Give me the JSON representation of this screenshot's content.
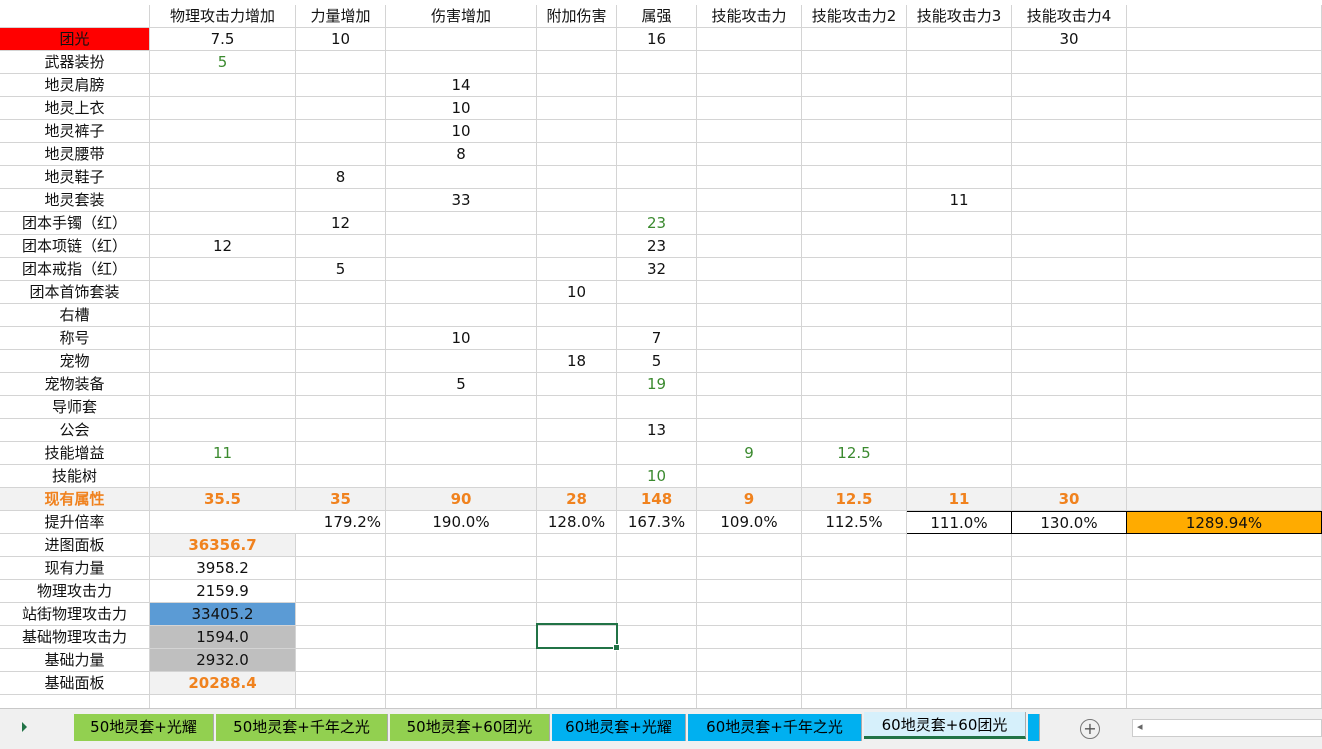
{
  "colors": {
    "green": "#3b8a2f",
    "orange": "#f0821e",
    "red": "#ff0000",
    "gray_bg": "#f2f2f2",
    "dark_gray_bg": "#bfbfbf",
    "blue_bg": "#5b9bd5",
    "orange_bg": "#ffab00",
    "tab_green": "#92d050",
    "tab_blue": "#00b0f0",
    "tab_active": "#d6f0fb"
  },
  "sheet": {
    "rows": [
      [
        {
          "v": ""
        },
        {
          "v": "物理攻击力增加"
        },
        {
          "v": "力量增加"
        },
        {
          "v": "伤害增加"
        },
        {
          "v": "附加伤害"
        },
        {
          "v": "属强"
        },
        {
          "v": "技能攻击力"
        },
        {
          "v": "技能攻击力2"
        },
        {
          "v": "技能攻击力3"
        },
        {
          "v": "技能攻击力4"
        },
        {
          "v": ""
        }
      ],
      [
        {
          "v": "团光",
          "bg": "red"
        },
        {
          "v": "7.5"
        },
        {
          "v": "10"
        },
        {
          "v": ""
        },
        {
          "v": ""
        },
        {
          "v": "16"
        },
        {
          "v": ""
        },
        {
          "v": ""
        },
        {
          "v": ""
        },
        {
          "v": "30"
        },
        {
          "v": ""
        }
      ],
      [
        {
          "v": "武器装扮"
        },
        {
          "v": "5",
          "c": "green"
        },
        {
          "v": ""
        },
        {
          "v": ""
        },
        {
          "v": ""
        },
        {
          "v": ""
        },
        {
          "v": ""
        },
        {
          "v": ""
        },
        {
          "v": ""
        },
        {
          "v": ""
        },
        {
          "v": ""
        }
      ],
      [
        {
          "v": "地灵肩膀"
        },
        {
          "v": ""
        },
        {
          "v": ""
        },
        {
          "v": "14"
        },
        {
          "v": ""
        },
        {
          "v": ""
        },
        {
          "v": ""
        },
        {
          "v": ""
        },
        {
          "v": ""
        },
        {
          "v": ""
        },
        {
          "v": ""
        }
      ],
      [
        {
          "v": "地灵上衣"
        },
        {
          "v": ""
        },
        {
          "v": ""
        },
        {
          "v": "10"
        },
        {
          "v": ""
        },
        {
          "v": ""
        },
        {
          "v": ""
        },
        {
          "v": ""
        },
        {
          "v": ""
        },
        {
          "v": ""
        },
        {
          "v": ""
        }
      ],
      [
        {
          "v": "地灵裤子"
        },
        {
          "v": ""
        },
        {
          "v": ""
        },
        {
          "v": "10"
        },
        {
          "v": ""
        },
        {
          "v": ""
        },
        {
          "v": ""
        },
        {
          "v": ""
        },
        {
          "v": ""
        },
        {
          "v": ""
        },
        {
          "v": ""
        }
      ],
      [
        {
          "v": "地灵腰带"
        },
        {
          "v": ""
        },
        {
          "v": ""
        },
        {
          "v": "8"
        },
        {
          "v": ""
        },
        {
          "v": ""
        },
        {
          "v": ""
        },
        {
          "v": ""
        },
        {
          "v": ""
        },
        {
          "v": ""
        },
        {
          "v": ""
        }
      ],
      [
        {
          "v": "地灵鞋子"
        },
        {
          "v": ""
        },
        {
          "v": "8"
        },
        {
          "v": ""
        },
        {
          "v": ""
        },
        {
          "v": ""
        },
        {
          "v": ""
        },
        {
          "v": ""
        },
        {
          "v": ""
        },
        {
          "v": ""
        },
        {
          "v": ""
        }
      ],
      [
        {
          "v": "地灵套装"
        },
        {
          "v": ""
        },
        {
          "v": ""
        },
        {
          "v": "33"
        },
        {
          "v": ""
        },
        {
          "v": ""
        },
        {
          "v": ""
        },
        {
          "v": ""
        },
        {
          "v": "11"
        },
        {
          "v": ""
        },
        {
          "v": ""
        }
      ],
      [
        {
          "v": "团本手镯（红）"
        },
        {
          "v": ""
        },
        {
          "v": "12"
        },
        {
          "v": ""
        },
        {
          "v": ""
        },
        {
          "v": "23",
          "c": "green"
        },
        {
          "v": ""
        },
        {
          "v": ""
        },
        {
          "v": ""
        },
        {
          "v": ""
        },
        {
          "v": ""
        }
      ],
      [
        {
          "v": "团本项链（红）"
        },
        {
          "v": "12"
        },
        {
          "v": ""
        },
        {
          "v": ""
        },
        {
          "v": ""
        },
        {
          "v": "23"
        },
        {
          "v": ""
        },
        {
          "v": ""
        },
        {
          "v": ""
        },
        {
          "v": ""
        },
        {
          "v": ""
        }
      ],
      [
        {
          "v": "团本戒指（红）"
        },
        {
          "v": ""
        },
        {
          "v": "5"
        },
        {
          "v": ""
        },
        {
          "v": ""
        },
        {
          "v": "32"
        },
        {
          "v": ""
        },
        {
          "v": ""
        },
        {
          "v": ""
        },
        {
          "v": ""
        },
        {
          "v": ""
        }
      ],
      [
        {
          "v": "团本首饰套装"
        },
        {
          "v": ""
        },
        {
          "v": ""
        },
        {
          "v": ""
        },
        {
          "v": "10"
        },
        {
          "v": ""
        },
        {
          "v": ""
        },
        {
          "v": ""
        },
        {
          "v": ""
        },
        {
          "v": ""
        },
        {
          "v": ""
        }
      ],
      [
        {
          "v": "右槽"
        },
        {
          "v": ""
        },
        {
          "v": ""
        },
        {
          "v": ""
        },
        {
          "v": ""
        },
        {
          "v": ""
        },
        {
          "v": ""
        },
        {
          "v": ""
        },
        {
          "v": ""
        },
        {
          "v": ""
        },
        {
          "v": ""
        }
      ],
      [
        {
          "v": "称号"
        },
        {
          "v": ""
        },
        {
          "v": ""
        },
        {
          "v": "10"
        },
        {
          "v": ""
        },
        {
          "v": "7"
        },
        {
          "v": ""
        },
        {
          "v": ""
        },
        {
          "v": ""
        },
        {
          "v": ""
        },
        {
          "v": ""
        }
      ],
      [
        {
          "v": "宠物"
        },
        {
          "v": ""
        },
        {
          "v": ""
        },
        {
          "v": ""
        },
        {
          "v": "18"
        },
        {
          "v": "5"
        },
        {
          "v": ""
        },
        {
          "v": ""
        },
        {
          "v": ""
        },
        {
          "v": ""
        },
        {
          "v": ""
        }
      ],
      [
        {
          "v": "宠物装备"
        },
        {
          "v": ""
        },
        {
          "v": ""
        },
        {
          "v": "5"
        },
        {
          "v": ""
        },
        {
          "v": "19",
          "c": "green"
        },
        {
          "v": ""
        },
        {
          "v": ""
        },
        {
          "v": ""
        },
        {
          "v": ""
        },
        {
          "v": ""
        }
      ],
      [
        {
          "v": "导师套"
        },
        {
          "v": ""
        },
        {
          "v": ""
        },
        {
          "v": ""
        },
        {
          "v": ""
        },
        {
          "v": ""
        },
        {
          "v": ""
        },
        {
          "v": ""
        },
        {
          "v": ""
        },
        {
          "v": ""
        },
        {
          "v": ""
        }
      ],
      [
        {
          "v": "公会"
        },
        {
          "v": ""
        },
        {
          "v": ""
        },
        {
          "v": ""
        },
        {
          "v": ""
        },
        {
          "v": "13"
        },
        {
          "v": ""
        },
        {
          "v": ""
        },
        {
          "v": ""
        },
        {
          "v": ""
        },
        {
          "v": ""
        }
      ],
      [
        {
          "v": "技能增益"
        },
        {
          "v": "11",
          "c": "green"
        },
        {
          "v": ""
        },
        {
          "v": ""
        },
        {
          "v": ""
        },
        {
          "v": ""
        },
        {
          "v": "9",
          "c": "green"
        },
        {
          "v": "12.5",
          "c": "green"
        },
        {
          "v": ""
        },
        {
          "v": ""
        },
        {
          "v": ""
        }
      ],
      [
        {
          "v": "技能树"
        },
        {
          "v": ""
        },
        {
          "v": ""
        },
        {
          "v": ""
        },
        {
          "v": ""
        },
        {
          "v": "10",
          "c": "green"
        },
        {
          "v": ""
        },
        {
          "v": ""
        },
        {
          "v": ""
        },
        {
          "v": ""
        },
        {
          "v": ""
        }
      ],
      [
        {
          "v": "现有属性",
          "c": "orange",
          "b": 1,
          "bg": "gray_bg"
        },
        {
          "v": "35.5",
          "c": "orange",
          "b": 1,
          "bg": "gray_bg"
        },
        {
          "v": "35",
          "c": "orange",
          "b": 1,
          "bg": "gray_bg"
        },
        {
          "v": "90",
          "c": "orange",
          "b": 1,
          "bg": "gray_bg"
        },
        {
          "v": "28",
          "c": "orange",
          "b": 1,
          "bg": "gray_bg"
        },
        {
          "v": "148",
          "c": "orange",
          "b": 1,
          "bg": "gray_bg"
        },
        {
          "v": "9",
          "c": "orange",
          "b": 1,
          "bg": "gray_bg"
        },
        {
          "v": "12.5",
          "c": "orange",
          "b": 1,
          "bg": "gray_bg"
        },
        {
          "v": "11",
          "c": "orange",
          "b": 1,
          "bg": "gray_bg"
        },
        {
          "v": "30",
          "c": "orange",
          "b": 1,
          "bg": "gray_bg"
        },
        {
          "v": "",
          "bg": "gray_bg"
        }
      ],
      [
        {
          "v": "提升倍率"
        },
        {
          "v": "179.2%",
          "span": 2
        },
        {
          "v": "190.0%"
        },
        {
          "v": "128.0%"
        },
        {
          "v": "167.3%"
        },
        {
          "v": "109.0%"
        },
        {
          "v": "112.5%"
        },
        {
          "v": "111.0%",
          "box": 1
        },
        {
          "v": "130.0%",
          "box": 1
        },
        {
          "v": "1289.94%",
          "bg": "orange_bg",
          "box": 1
        }
      ],
      [
        {
          "v": "进图面板"
        },
        {
          "v": "36356.7",
          "c": "orange",
          "b": 1,
          "bg": "gray_bg"
        }
      ],
      [
        {
          "v": "现有力量"
        },
        {
          "v": "3958.2"
        }
      ],
      [
        {
          "v": "物理攻击力"
        },
        {
          "v": "2159.9"
        }
      ],
      [
        {
          "v": "站街物理攻击力"
        },
        {
          "v": "33405.2",
          "bg": "blue_bg"
        }
      ],
      [
        {
          "v": "基础物理攻击力"
        },
        {
          "v": "1594.0",
          "bg": "dark_gray_bg"
        }
      ],
      [
        {
          "v": "基础力量"
        },
        {
          "v": "2932.0",
          "bg": "dark_gray_bg"
        }
      ],
      [
        {
          "v": "基础面板"
        },
        {
          "v": "20288.4",
          "c": "orange",
          "b": 1,
          "bg": "gray_bg"
        }
      ]
    ]
  },
  "tabs": [
    {
      "label": "50地灵套+光耀",
      "color": "tab_green"
    },
    {
      "label": "50地灵套+千年之光",
      "color": "tab_green"
    },
    {
      "label": "50地灵套+60团光",
      "color": "tab_green"
    },
    {
      "label": "60地灵套+光耀",
      "color": "tab_blue"
    },
    {
      "label": "60地灵套+千年之光",
      "color": "tab_blue"
    },
    {
      "label": "60地灵套+60团光",
      "color": "tab_active",
      "active": true
    }
  ],
  "add_sheet_icon": "plus-circle-icon",
  "add_sheet_symbol": "+"
}
